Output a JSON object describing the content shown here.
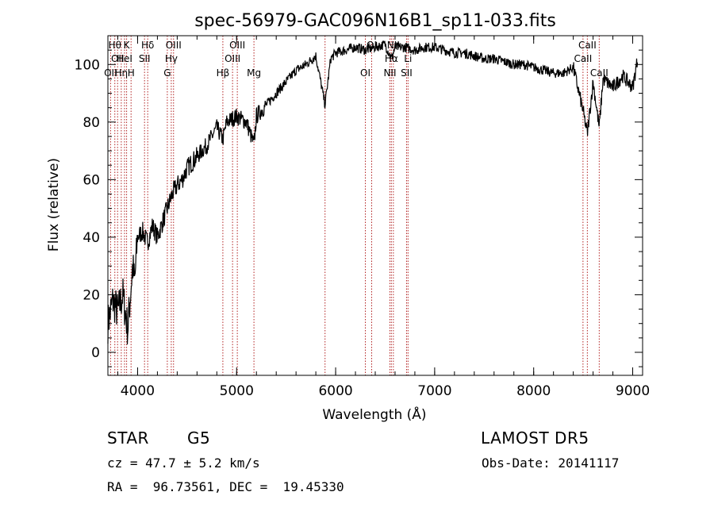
{
  "chart_data": {
    "type": "line",
    "title": "spec-56979-GAC096N16B1_sp11-033.fits",
    "xlabel": "Wavelength (Å)",
    "ylabel": "Flux (relative)",
    "xlim": [
      3700,
      9100
    ],
    "ylim": [
      -8,
      110
    ],
    "xticks": [
      4000,
      5000,
      6000,
      7000,
      8000,
      9000
    ],
    "yticks": [
      0,
      20,
      40,
      60,
      80,
      100
    ],
    "grid": false,
    "series": [
      {
        "x": [
          3700,
          3750,
          3800,
          3850,
          3900,
          3950,
          3970,
          4000,
          4050,
          4100,
          4150,
          4200,
          4250,
          4300,
          4350,
          4400,
          4450,
          4500,
          4600,
          4700,
          4800,
          4861,
          4900,
          5000,
          5100,
          5175,
          5200,
          5300,
          5400,
          5500,
          5600,
          5700,
          5800,
          5893,
          5950,
          6000,
          6100,
          6200,
          6300,
          6400,
          6500,
          6563,
          6600,
          6700,
          6800,
          6900,
          7000,
          7100,
          7200,
          7300,
          7400,
          7500,
          7600,
          7700,
          7800,
          7900,
          8000,
          8100,
          8200,
          8300,
          8400,
          8498,
          8542,
          8600,
          8662,
          8700,
          8800,
          8900,
          9000,
          9050
        ],
        "y": [
          10,
          18,
          14,
          20,
          8,
          30,
          24,
          40,
          42,
          38,
          44,
          40,
          45,
          50,
          55,
          58,
          60,
          64,
          68,
          72,
          78,
          74,
          80,
          82,
          80,
          72,
          82,
          86,
          90,
          94,
          98,
          100,
          103,
          86,
          102,
          104,
          105,
          106,
          105,
          106,
          107,
          102,
          106,
          106,
          105,
          106,
          106,
          105,
          104,
          104,
          103,
          102,
          102,
          101,
          100,
          100,
          99,
          98,
          97,
          97,
          99,
          84,
          76,
          94,
          78,
          95,
          92,
          96,
          92,
          102
        ]
      }
    ],
    "lines": [
      {
        "x": 3727,
        "label": "OII",
        "row": 3
      },
      {
        "x": 3770,
        "label": "Hθ",
        "row": 1
      },
      {
        "x": 3798,
        "label": "OII",
        "row": 2
      },
      {
        "x": 3835,
        "label": "Hη",
        "row": 3
      },
      {
        "x": 3868,
        "label": "HeI",
        "row": 2
      },
      {
        "x": 3889,
        "label": "K",
        "row": 1
      },
      {
        "x": 3934,
        "label": "H",
        "row": 3
      },
      {
        "x": 4070,
        "label": "SII",
        "row": 2
      },
      {
        "x": 4102,
        "label": "Hδ",
        "row": 1
      },
      {
        "x": 4300,
        "label": "G",
        "row": 3
      },
      {
        "x": 4340,
        "label": "Hγ",
        "row": 2
      },
      {
        "x": 4363,
        "label": "OIII",
        "row": 1
      },
      {
        "x": 4861,
        "label": "Hβ",
        "row": 3
      },
      {
        "x": 4959,
        "label": "OIII",
        "row": 2
      },
      {
        "x": 5007,
        "label": "OIII",
        "row": 1
      },
      {
        "x": 5175,
        "label": "Mg",
        "row": 3
      },
      {
        "x": 5893,
        "label": "",
        "row": 1
      },
      {
        "x": 6300,
        "label": "OI",
        "row": 3
      },
      {
        "x": 6364,
        "label": "OI",
        "row": 1
      },
      {
        "x": 6548,
        "label": "NII",
        "row": 3
      },
      {
        "x": 6563,
        "label": "Hα",
        "row": 2
      },
      {
        "x": 6583,
        "label": "NII",
        "row": 1
      },
      {
        "x": 6716,
        "label": "SII",
        "row": 3
      },
      {
        "x": 6731,
        "label": "Li",
        "row": 2
      },
      {
        "x": 8498,
        "label": "CaII",
        "row": 2
      },
      {
        "x": 8542,
        "label": "CaII",
        "row": 1
      },
      {
        "x": 8662,
        "label": "CaII",
        "row": 3
      }
    ]
  },
  "info": {
    "class": "STAR",
    "subclass": "G5",
    "survey": "LAMOST DR5",
    "cz": "cz = 47.7 ± 5.2 km/s",
    "obs_date": "Obs-Date: 20141117",
    "radec": "RA =  96.73561, DEC =  19.45330"
  },
  "colors": {
    "spectrum": "#000000",
    "line_markers": "#b22222"
  }
}
